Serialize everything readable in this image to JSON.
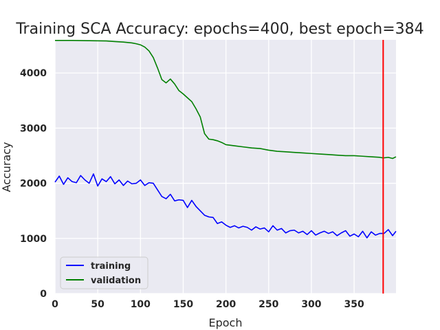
{
  "chart_data": {
    "type": "line",
    "title": "Training SCA Accuracy: epochs=400, best epoch=384",
    "xlabel": "Epoch",
    "ylabel": "Accuracy",
    "xlim": [
      0,
      399
    ],
    "ylim": [
      0,
      4600
    ],
    "xticks": [
      0,
      50,
      100,
      150,
      200,
      250,
      300,
      350
    ],
    "yticks": [
      0,
      1000,
      2000,
      3000,
      4000
    ],
    "grid": true,
    "legend_position": "lower-left",
    "best_epoch": 384,
    "best_epoch_line_color": "#ff0000",
    "series": [
      {
        "name": "training",
        "color": "#0000ff",
        "x": [
          0,
          5,
          10,
          15,
          20,
          25,
          30,
          35,
          40,
          45,
          50,
          55,
          60,
          65,
          70,
          75,
          80,
          85,
          90,
          95,
          100,
          105,
          110,
          115,
          120,
          125,
          130,
          135,
          140,
          145,
          150,
          155,
          160,
          165,
          170,
          175,
          180,
          185,
          190,
          195,
          200,
          205,
          210,
          215,
          220,
          225,
          230,
          235,
          240,
          245,
          250,
          255,
          260,
          265,
          270,
          275,
          280,
          285,
          290,
          295,
          300,
          305,
          310,
          315,
          320,
          325,
          330,
          335,
          340,
          345,
          350,
          355,
          360,
          365,
          370,
          375,
          380,
          385,
          390,
          395,
          399
        ],
        "y": [
          2020,
          2130,
          1980,
          2100,
          2030,
          2010,
          2140,
          2060,
          2000,
          2170,
          1950,
          2080,
          2030,
          2120,
          1990,
          2060,
          1960,
          2040,
          1990,
          2000,
          2060,
          1960,
          2010,
          2000,
          1880,
          1760,
          1720,
          1800,
          1680,
          1700,
          1690,
          1560,
          1690,
          1580,
          1500,
          1420,
          1390,
          1380,
          1270,
          1300,
          1240,
          1200,
          1230,
          1190,
          1220,
          1200,
          1150,
          1210,
          1170,
          1190,
          1120,
          1230,
          1150,
          1180,
          1100,
          1140,
          1150,
          1100,
          1130,
          1070,
          1140,
          1060,
          1100,
          1130,
          1090,
          1120,
          1050,
          1100,
          1140,
          1040,
          1080,
          1030,
          1130,
          1010,
          1120,
          1060,
          1090,
          1090,
          1160,
          1050,
          1130
        ]
      },
      {
        "name": "validation",
        "color": "#008000",
        "x": [
          0,
          20,
          40,
          60,
          70,
          80,
          90,
          95,
          100,
          105,
          110,
          115,
          120,
          125,
          130,
          135,
          140,
          145,
          150,
          155,
          160,
          165,
          170,
          175,
          180,
          185,
          190,
          195,
          200,
          210,
          220,
          230,
          240,
          250,
          260,
          270,
          280,
          290,
          300,
          310,
          320,
          330,
          340,
          350,
          360,
          370,
          380,
          384,
          390,
          395,
          399
        ],
        "y": [
          4590,
          4590,
          4585,
          4580,
          4570,
          4560,
          4545,
          4530,
          4510,
          4470,
          4400,
          4280,
          4090,
          3880,
          3820,
          3890,
          3800,
          3680,
          3620,
          3550,
          3480,
          3350,
          3200,
          2900,
          2800,
          2790,
          2770,
          2740,
          2700,
          2680,
          2660,
          2640,
          2630,
          2600,
          2580,
          2570,
          2560,
          2550,
          2540,
          2530,
          2520,
          2510,
          2500,
          2500,
          2490,
          2480,
          2470,
          2460,
          2470,
          2450,
          2480
        ]
      }
    ]
  }
}
